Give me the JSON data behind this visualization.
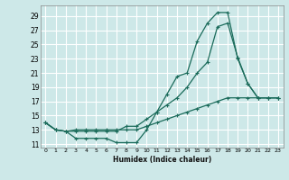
{
  "xlabel": "Humidex (Indice chaleur)",
  "bg_color": "#cde8e8",
  "grid_color": "#b0d0d0",
  "line_color": "#1a6b5a",
  "xlim": [
    -0.5,
    23.5
  ],
  "ylim": [
    10.5,
    30.5
  ],
  "yticks": [
    11,
    13,
    15,
    17,
    19,
    21,
    23,
    25,
    27,
    29
  ],
  "xticks": [
    0,
    1,
    2,
    3,
    4,
    5,
    6,
    7,
    8,
    9,
    10,
    11,
    12,
    13,
    14,
    15,
    16,
    17,
    18,
    19,
    20,
    21,
    22,
    23
  ],
  "line1_x": [
    0,
    1,
    2,
    3,
    4,
    5,
    6,
    7,
    8,
    9,
    10,
    11,
    12,
    13,
    14,
    15,
    16,
    17,
    18,
    19,
    20,
    21,
    22,
    23
  ],
  "line1_y": [
    14,
    13,
    12.8,
    11.8,
    11.8,
    11.8,
    11.8,
    11.2,
    11.2,
    11.2,
    13,
    15.5,
    18,
    20.5,
    21,
    25.5,
    28,
    29.5,
    29.5,
    23,
    19.5,
    17.5,
    17.5,
    17.5
  ],
  "line2_x": [
    0,
    1,
    2,
    3,
    4,
    5,
    6,
    7,
    8,
    9,
    10,
    11,
    12,
    13,
    14,
    15,
    16,
    17,
    18,
    19,
    20,
    21,
    22,
    23
  ],
  "line2_y": [
    14,
    13,
    12.8,
    12.8,
    12.8,
    12.8,
    12.8,
    12.8,
    13.5,
    13.5,
    14.5,
    15.5,
    16.5,
    17.5,
    19,
    21,
    22.5,
    27.5,
    28,
    23.2,
    19.5,
    17.5,
    17.5,
    17.5
  ],
  "line3_x": [
    0,
    1,
    2,
    3,
    4,
    5,
    6,
    7,
    8,
    9,
    10,
    11,
    12,
    13,
    14,
    15,
    16,
    17,
    18,
    19,
    20,
    21,
    22,
    23
  ],
  "line3_y": [
    14,
    13,
    12.8,
    13,
    13,
    13,
    13,
    13,
    13,
    13,
    13.5,
    14,
    14.5,
    15,
    15.5,
    16,
    16.5,
    17,
    17.5,
    17.5,
    17.5,
    17.5,
    17.5,
    17.5
  ]
}
